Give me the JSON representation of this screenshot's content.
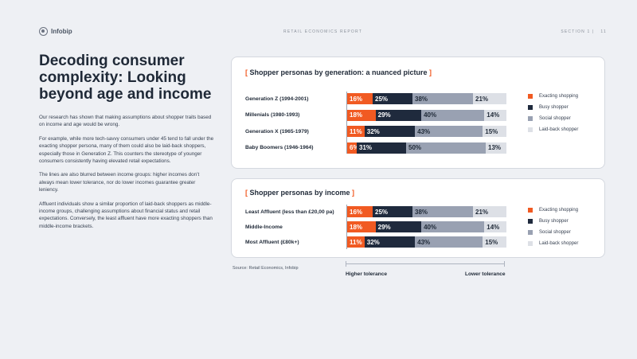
{
  "header": {
    "brand": "Infobip",
    "report_title": "RETAIL ECONOMICS REPORT",
    "section": "SECTION 1  |",
    "page": "11"
  },
  "article": {
    "heading": "Decoding consumer complexity: Looking beyond age and income",
    "paragraphs": [
      "Our research has shown that making assumptions about shopper traits based on income and age would be wrong.",
      "For example, while more tech-savvy consumers under 45 tend to fall under the exacting shopper persona, many of them could also be laid-back shoppers, especially those in Generation Z. This counters the stereotype of younger consumers consistently having elevated retail expectations.",
      "The lines are also blurred between income groups: higher incomes don’t always mean lower tolerance, nor do lower incomes guarantee greater leniency.",
      "Affluent individuals show a similar proportion of laid-back shoppers as middle-income groups, challenging assumptions about financial status and retail expectations. Conversely, the least affluent have more exacting shoppers than middle-income brackets."
    ]
  },
  "colors": {
    "exacting": "#f15a22",
    "busy": "#1f2a3d",
    "social": "#99a1b2",
    "laid_back": "#dde0e6"
  },
  "legend": [
    "Exacting shopping",
    "Busy shopper",
    "Social shopper",
    "Laid-back shopper"
  ],
  "chart_data": [
    {
      "type": "bar",
      "stacked": true,
      "orientation": "horizontal",
      "title_open": "[ ",
      "title": "Shopper personas by generation: a nuanced picture",
      "title_close": " ]",
      "categories": [
        "Generation Z (1994-2001)",
        "Millenials (1980-1993)",
        "Generation X (1965-1979)",
        "Baby Boomers (1946-1964)"
      ],
      "series": [
        {
          "name": "Exacting shopping",
          "values": [
            16,
            18,
            11,
            6
          ],
          "labels": [
            "16%",
            "18%",
            "11%",
            "6%"
          ]
        },
        {
          "name": "Busy shopper",
          "values": [
            25,
            29,
            32,
            31
          ],
          "labels": [
            "25%",
            "29%",
            "32%",
            "31%"
          ]
        },
        {
          "name": "Social shopper",
          "values": [
            38,
            40,
            43,
            50
          ],
          "labels": [
            "38%",
            "40%",
            "43%",
            "50%"
          ]
        },
        {
          "name": "Laid-back shopper",
          "values": [
            21,
            14,
            15,
            13
          ],
          "labels": [
            "21%",
            "14%",
            "15%",
            "13%"
          ]
        }
      ],
      "legend_position": "right",
      "grid": false
    },
    {
      "type": "bar",
      "stacked": true,
      "orientation": "horizontal",
      "title_open": "[ ",
      "title": "Shopper personas by income",
      "title_close": " ]",
      "categories": [
        "Least Affluent (less than £20,00 pa)",
        "Middle-Income",
        "Most Affluent (£80k+)"
      ],
      "series": [
        {
          "name": "Exacting shopping",
          "values": [
            16,
            18,
            11
          ],
          "labels": [
            "16%",
            "18%",
            "11%"
          ]
        },
        {
          "name": "Busy shopper",
          "values": [
            25,
            29,
            32
          ],
          "labels": [
            "25%",
            "29%",
            "32%"
          ]
        },
        {
          "name": "Social shopper",
          "values": [
            38,
            40,
            43
          ],
          "labels": [
            "38%",
            "40%",
            "43%"
          ]
        },
        {
          "name": "Laid-back shopper",
          "values": [
            21,
            14,
            15
          ],
          "labels": [
            "21%",
            "14%",
            "15%"
          ]
        }
      ],
      "legend_position": "right",
      "grid": false
    }
  ],
  "footer": {
    "source": "Source: Retail Economics, Infobip",
    "higher_tolerance": "Higher tolerance",
    "lower_tolerance": "Lower tolerance"
  }
}
